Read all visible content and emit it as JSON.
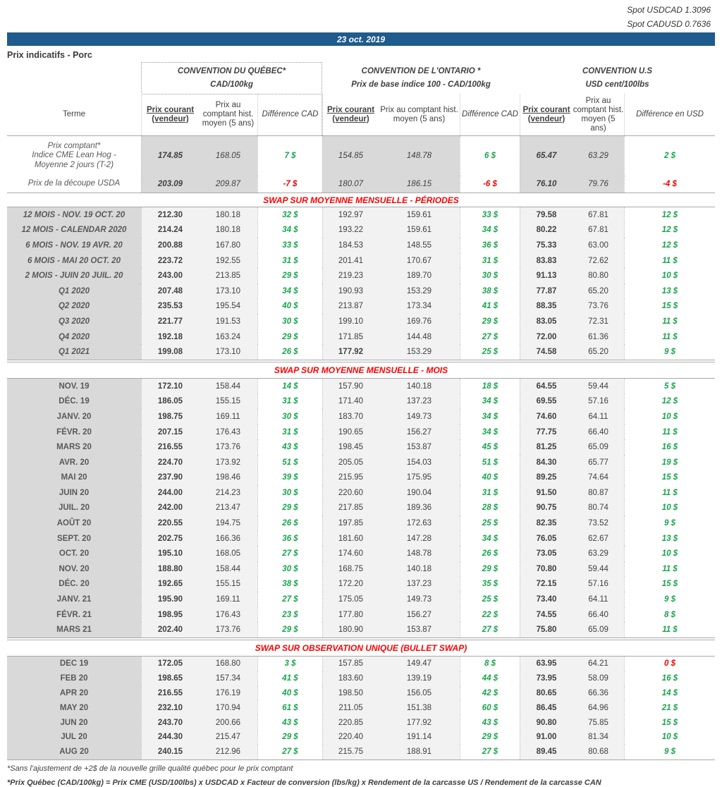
{
  "colors": {
    "blue": "#1f5b8c",
    "green": "#17a54b",
    "red": "#ee0000",
    "titlered": "#ff0000"
  },
  "spot": {
    "usdcad": "Spot USDCAD 1.3096",
    "cadusd": "Spot CADUSD 0.7636"
  },
  "date_banner": "23 oct. 2019",
  "page_title": "Prix indicatifs - Porc",
  "header": {
    "terme": "Terme",
    "quebec": {
      "title": "CONVENTION DU QUÉBEC*",
      "unit": "CAD/100kg"
    },
    "ontario": {
      "title": "CONVENTION DE L'ONTARIO *",
      "unit": "Prix de base indice 100 - CAD/100kg"
    },
    "us": {
      "title": "CONVENTION U.S",
      "unit": "USD cent/100lbs"
    },
    "columns": {
      "courant": "Prix courant (vendeur)",
      "hist": "Prix au comptant hist. moyen (5 ans)",
      "diff_cad": "Différence CAD",
      "diff_usd": "Différence en USD"
    }
  },
  "sections": {
    "comptant": {
      "rows": [
        {
          "cells": [
            "Prix comptant*\nIndice CME Lean Hog -\nMoyenne 2 jours (T-2)",
            "174.85",
            "168.05",
            "7 $",
            "154.85",
            "148.78",
            "6 $",
            "65.47",
            "63.29",
            "2 $"
          ]
        },
        {
          "cells": [
            "Prix de la découpe USDA",
            "203.09",
            "209.87",
            "-7 $",
            "180.07",
            "186.15",
            "-6 $",
            "76.10",
            "79.76",
            "-4 $"
          ]
        }
      ]
    },
    "periodes": {
      "title": "SWAP SUR MOYENNE MENSUELLE - PÉRIODES",
      "rows": [
        {
          "cells": [
            "12 MOIS -  NOV. 19 OCT. 20",
            "212.30",
            "180.18",
            "32 $",
            "192.97",
            "159.61",
            "33 $",
            "79.58",
            "67.81",
            "12 $"
          ]
        },
        {
          "cells": [
            "12 MOIS - CALENDAR 2020",
            "214.24",
            "180.18",
            "34 $",
            "193.22",
            "159.61",
            "34 $",
            "80.22",
            "67.81",
            "12 $"
          ]
        },
        {
          "cells": [
            "6 MOIS -  NOV. 19 AVR. 20",
            "200.88",
            "167.80",
            "33 $",
            "184.53",
            "148.55",
            "36 $",
            "75.33",
            "63.00",
            "12 $"
          ]
        },
        {
          "cells": [
            "6 MOIS -  MAI 20 OCT. 20",
            "223.72",
            "192.55",
            "31 $",
            "201.41",
            "170.67",
            "31 $",
            "83.83",
            "72.62",
            "11 $"
          ]
        },
        {
          "cells": [
            "2 MOIS -  JUIN 20  JUIL. 20",
            "243.00",
            "213.85",
            "29 $",
            "219.23",
            "189.70",
            "30 $",
            "91.13",
            "80.80",
            "10 $"
          ]
        },
        {
          "cells": [
            "Q1 2020",
            "207.48",
            "173.10",
            "34 $",
            "190.93",
            "153.29",
            "38 $",
            "77.87",
            "65.20",
            "13 $"
          ]
        },
        {
          "cells": [
            "Q2 2020",
            "235.53",
            "195.54",
            "40 $",
            "213.87",
            "173.34",
            "41 $",
            "88.35",
            "73.76",
            "15 $"
          ]
        },
        {
          "cells": [
            "Q3 2020",
            "221.77",
            "191.53",
            "30 $",
            "199.10",
            "169.76",
            "29 $",
            "83.05",
            "72.31",
            "11 $"
          ]
        },
        {
          "cells": [
            "Q4 2020",
            "192.18",
            "163.24",
            "29 $",
            "171.85",
            "144.48",
            "27 $",
            "72.00",
            "61.36",
            "11 $"
          ]
        },
        {
          "cells": [
            "Q1 2021",
            "199.08",
            "173.10",
            "26 $",
            "177.92",
            "153.29",
            "25 $",
            "74.58",
            "65.20",
            "9 $"
          ],
          "on_bold": true
        }
      ]
    },
    "mois": {
      "title": "SWAP SUR MOYENNE MENSUELLE - MOIS",
      "rows": [
        {
          "cells": [
            "NOV. 19",
            "172.10",
            "158.44",
            "14 $",
            "157.90",
            "140.18",
            "18 $",
            "64.55",
            "59.44",
            "5 $"
          ]
        },
        {
          "cells": [
            "DÉC. 19",
            "186.05",
            "155.15",
            "31 $",
            "171.40",
            "137.23",
            "34 $",
            "69.55",
            "57.16",
            "12 $"
          ]
        },
        {
          "cells": [
            "JANV. 20",
            "198.75",
            "169.11",
            "30 $",
            "183.70",
            "149.73",
            "34 $",
            "74.60",
            "64.11",
            "10 $"
          ]
        },
        {
          "cells": [
            "FÉVR. 20",
            "207.15",
            "176.43",
            "31 $",
            "190.65",
            "156.27",
            "34 $",
            "77.75",
            "66.40",
            "11 $"
          ]
        },
        {
          "cells": [
            "MARS 20",
            "216.55",
            "173.76",
            "43 $",
            "198.45",
            "153.87",
            "45 $",
            "81.25",
            "65.09",
            "16 $"
          ]
        },
        {
          "cells": [
            "AVR. 20",
            "224.70",
            "173.92",
            "51 $",
            "205.05",
            "154.03",
            "51 $",
            "84.30",
            "65.77",
            "19 $"
          ]
        },
        {
          "cells": [
            "MAI 20",
            "237.90",
            "198.46",
            "39 $",
            "215.95",
            "175.95",
            "40 $",
            "89.25",
            "74.64",
            "15 $"
          ]
        },
        {
          "cells": [
            "JUIN 20",
            "244.00",
            "214.23",
            "30 $",
            "220.60",
            "190.04",
            "31 $",
            "91.50",
            "80.87",
            "11 $"
          ]
        },
        {
          "cells": [
            "JUIL. 20",
            "242.00",
            "213.47",
            "29 $",
            "217.85",
            "189.36",
            "28 $",
            "90.75",
            "80.74",
            "10 $"
          ]
        },
        {
          "cells": [
            "AOÛT 20",
            "220.55",
            "194.75",
            "26 $",
            "197.85",
            "172.63",
            "25 $",
            "82.35",
            "73.52",
            "9 $"
          ]
        },
        {
          "cells": [
            "SEPT. 20",
            "202.75",
            "166.36",
            "36 $",
            "181.60",
            "147.28",
            "34 $",
            "76.05",
            "62.67",
            "13 $"
          ]
        },
        {
          "cells": [
            "OCT. 20",
            "195.10",
            "168.05",
            "27 $",
            "174.60",
            "148.78",
            "26 $",
            "73.05",
            "63.29",
            "10 $"
          ]
        },
        {
          "cells": [
            "NOV. 20",
            "188.80",
            "158.44",
            "30 $",
            "168.75",
            "140.18",
            "29 $",
            "70.80",
            "59.44",
            "11 $"
          ]
        },
        {
          "cells": [
            "DÉC. 20",
            "192.65",
            "155.15",
            "38 $",
            "172.20",
            "137.23",
            "35 $",
            "72.15",
            "57.16",
            "15 $"
          ]
        },
        {
          "cells": [
            "JANV. 21",
            "195.90",
            "169.11",
            "27 $",
            "175.05",
            "149.73",
            "25 $",
            "73.40",
            "64.11",
            "9 $"
          ]
        },
        {
          "cells": [
            "FÉVR. 21",
            "198.95",
            "176.43",
            "23 $",
            "177.80",
            "156.27",
            "22 $",
            "74.55",
            "66.40",
            "8 $"
          ]
        },
        {
          "cells": [
            "MARS 21",
            "202.40",
            "173.76",
            "29 $",
            "180.90",
            "153.87",
            "27 $",
            "75.80",
            "65.09",
            "11 $"
          ]
        }
      ]
    },
    "bullet": {
      "title": "SWAP SUR OBSERVATION UNIQUE (BULLET SWAP)",
      "rows": [
        {
          "cells": [
            "DEC 19",
            "172.05",
            "168.80",
            "3 $",
            "157.85",
            "149.47",
            "8 $",
            "63.95",
            "64.21",
            "0 $"
          ]
        },
        {
          "cells": [
            "FEB 20",
            "198.65",
            "157.34",
            "41 $",
            "183.60",
            "139.19",
            "44 $",
            "73.95",
            "58.09",
            "16 $"
          ]
        },
        {
          "cells": [
            "APR 20",
            "216.55",
            "176.19",
            "40 $",
            "198.50",
            "156.05",
            "42 $",
            "80.65",
            "66.36",
            "14 $"
          ]
        },
        {
          "cells": [
            "MAY 20",
            "232.10",
            "170.94",
            "61 $",
            "211.05",
            "151.38",
            "60 $",
            "86.45",
            "64.96",
            "21 $"
          ]
        },
        {
          "cells": [
            "JUN 20",
            "243.70",
            "200.66",
            "43 $",
            "220.85",
            "177.92",
            "43 $",
            "90.80",
            "75.85",
            "15 $"
          ]
        },
        {
          "cells": [
            "JUL 20",
            "244.30",
            "215.47",
            "29 $",
            "220.40",
            "191.14",
            "29 $",
            "91.00",
            "81.34",
            "10 $"
          ]
        },
        {
          "cells": [
            "AUG 20",
            "240.15",
            "212.96",
            "27 $",
            "215.75",
            "188.91",
            "27 $",
            "89.45",
            "80.68",
            "9 $"
          ]
        }
      ]
    }
  },
  "footnotes": [
    "*Sans l'ajustement de +2$ de la nouvelle grille qualité québec pour le prix comptant",
    "*Prix Québec (CAD/100kg) = Prix CME (USD/100lbs) x USDCAD x Facteur de conversion (lbs/kg) x Rendement de la carcasse US / Rendement de la carcasse CAN"
  ]
}
